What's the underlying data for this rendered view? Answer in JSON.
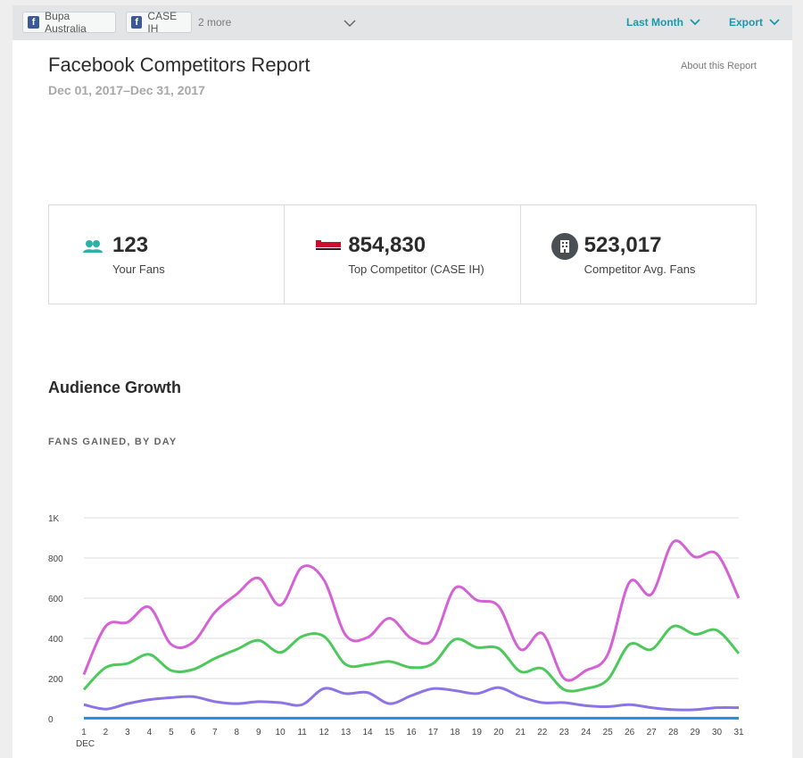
{
  "filters": {
    "profiles": [
      {
        "name": "Bupa Australia",
        "icon": "facebook-icon"
      },
      {
        "name": "CASE IH",
        "icon": "facebook-icon"
      }
    ],
    "more_label": "2 more",
    "date_range_dropdown": "Last Month",
    "export_label": "Export"
  },
  "header": {
    "title": "Facebook Competitors Report",
    "date_range": "Dec 01, 2017–Dec 31, 2017",
    "about_link": "About this Report"
  },
  "stats": [
    {
      "value": "123",
      "label": "Your Fans",
      "icon": "fans-icon"
    },
    {
      "value": "854,830",
      "label": "Top Competitor (CASE IH)",
      "icon": "case-ih-logo"
    },
    {
      "value": "523,017",
      "label": "Competitor Avg. Fans",
      "icon": "building-icon"
    }
  ],
  "section": {
    "title": "Audience Growth",
    "subtitle": "FANS GAINED, BY DAY"
  },
  "colors": {
    "accent": "#1b97b0",
    "fans_icon": "#2bb3a8",
    "series_top": "#d462d4",
    "series_avg": "#4cc95a",
    "series_low": "#8c74e6",
    "series_you": "#1f8fd6"
  },
  "chart_data": {
    "type": "line",
    "x": [
      1,
      2,
      3,
      4,
      5,
      6,
      7,
      8,
      9,
      10,
      11,
      12,
      13,
      14,
      15,
      16,
      17,
      18,
      19,
      20,
      21,
      22,
      23,
      24,
      25,
      26,
      27,
      28,
      29,
      30,
      31
    ],
    "x_month_label": "DEC",
    "ylim": [
      0,
      1000
    ],
    "yticks": [
      0,
      200,
      400,
      600,
      800,
      1000
    ],
    "ytick_labels": [
      "0",
      "200",
      "400",
      "600",
      "800",
      "1K"
    ],
    "grid": true,
    "series": [
      {
        "color": "#d462d4",
        "values": [
          220,
          460,
          480,
          555,
          370,
          380,
          530,
          620,
          700,
          565,
          755,
          690,
          415,
          405,
          500,
          400,
          395,
          650,
          590,
          560,
          345,
          425,
          200,
          240,
          320,
          680,
          620,
          880,
          805,
          820,
          600
        ]
      },
      {
        "color": "#4cc95a",
        "values": [
          145,
          255,
          275,
          320,
          240,
          245,
          300,
          345,
          390,
          330,
          410,
          410,
          270,
          270,
          285,
          255,
          275,
          395,
          355,
          350,
          235,
          250,
          145,
          150,
          195,
          370,
          345,
          460,
          420,
          440,
          325
        ]
      },
      {
        "color": "#8c74e6",
        "values": [
          70,
          48,
          75,
          95,
          105,
          110,
          85,
          75,
          85,
          80,
          70,
          150,
          125,
          130,
          75,
          115,
          150,
          140,
          125,
          155,
          110,
          80,
          80,
          65,
          60,
          70,
          55,
          45,
          45,
          55,
          55
        ]
      },
      {
        "color": "#1f8fd6",
        "values": [
          3,
          3,
          3,
          3,
          3,
          3,
          3,
          3,
          3,
          3,
          3,
          3,
          3,
          3,
          3,
          3,
          3,
          3,
          3,
          3,
          3,
          3,
          3,
          3,
          3,
          3,
          3,
          3,
          3,
          3,
          3
        ]
      }
    ]
  }
}
